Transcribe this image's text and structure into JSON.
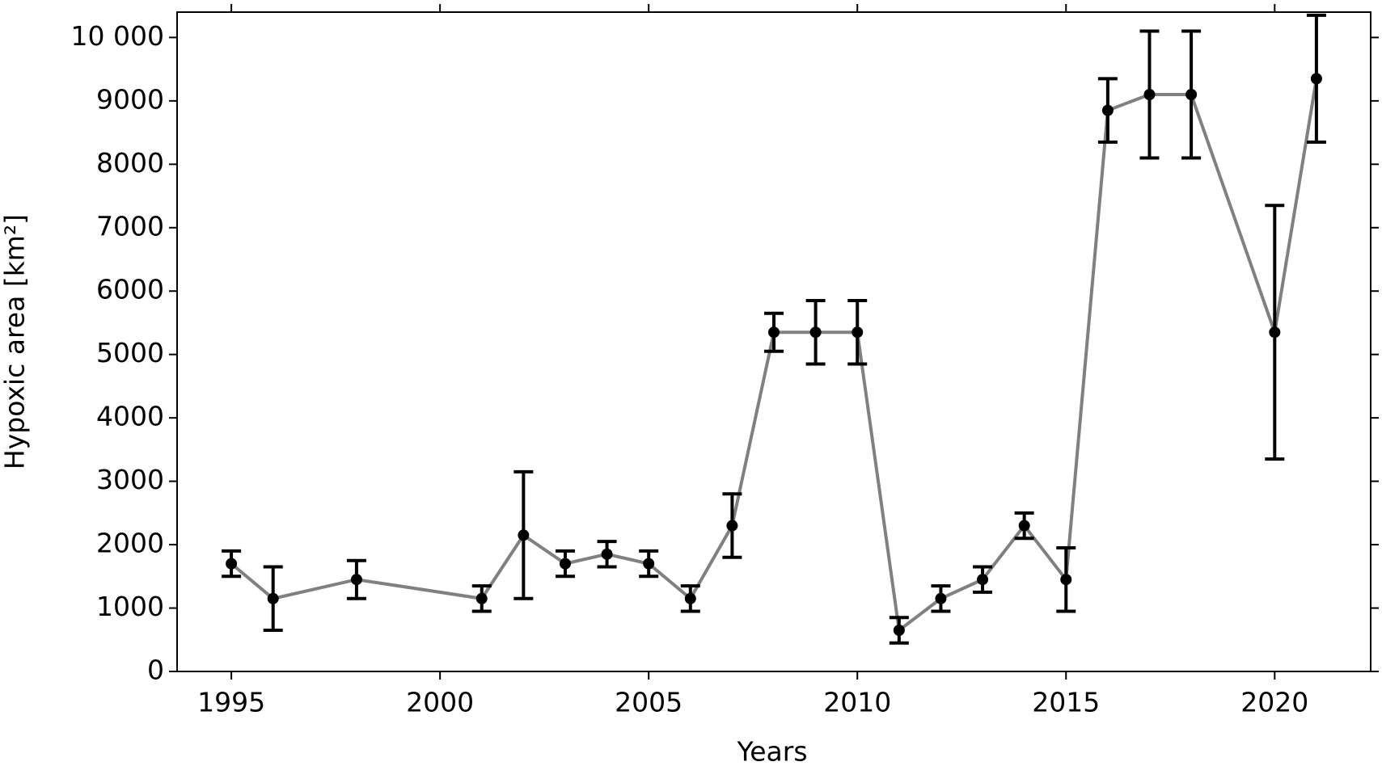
{
  "chart_data": {
    "type": "line",
    "x_label": "Years",
    "y_label": "Hypoxic area [km²]",
    "x": [
      1995,
      1996,
      1998,
      2001,
      2002,
      2003,
      2004,
      2005,
      2006,
      2007,
      2008,
      2009,
      2010,
      2011,
      2012,
      2013,
      2014,
      2015,
      2016,
      2017,
      2018,
      2020,
      2021
    ],
    "series": [
      {
        "color": "#808080",
        "marker_color": "#000000",
        "values": [
          1700,
          1150,
          1450,
          1150,
          2150,
          1700,
          1850,
          1700,
          1150,
          2300,
          5350,
          5350,
          5350,
          650,
          1150,
          1450,
          2300,
          1450,
          8850,
          9100,
          9100,
          5350,
          9350
        ],
        "errors": [
          200,
          500,
          300,
          200,
          1000,
          200,
          200,
          200,
          200,
          500,
          300,
          500,
          500,
          200,
          200,
          200,
          200,
          500,
          500,
          1000,
          1000,
          2000,
          1000
        ]
      }
    ],
    "xlim": [
      1993.7,
      2022.3
    ],
    "ylim": [
      0,
      10400
    ],
    "xticks": [
      1995,
      2000,
      2005,
      2010,
      2015,
      2020
    ],
    "yticks": [
      0,
      1000,
      2000,
      3000,
      4000,
      5000,
      6000,
      7000,
      8000,
      9000,
      {
        "value": 10000,
        "label": "10 000"
      }
    ]
  }
}
